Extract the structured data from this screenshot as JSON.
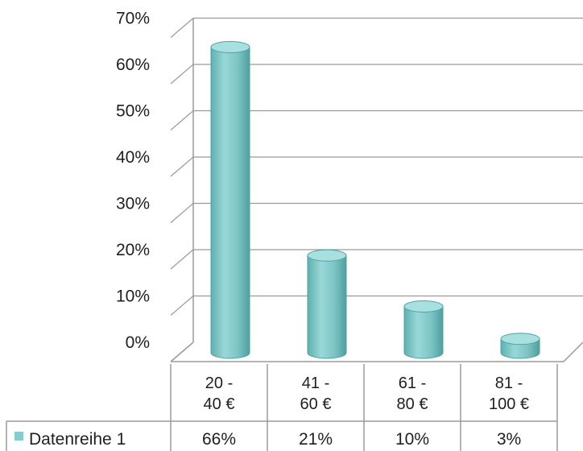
{
  "chart_data": {
    "type": "bar",
    "style": "3d-cylinder",
    "categories": [
      [
        "20 -",
        "40 €"
      ],
      [
        "41 -",
        "60 €"
      ],
      [
        "61 -",
        "80 €"
      ],
      [
        "81 -",
        "100 €"
      ]
    ],
    "series": [
      {
        "name": "Datenreihe 1",
        "values": [
          66,
          21,
          10,
          3
        ],
        "labels": [
          "66%",
          "21%",
          "10%",
          "3%"
        ]
      }
    ],
    "y_ticks": [
      "0%",
      "10%",
      "20%",
      "30%",
      "40%",
      "50%",
      "60%",
      "70%"
    ],
    "ylim": [
      0,
      70
    ],
    "grid": true,
    "legend": "data-table-left",
    "colors": {
      "bar": "#7fc8c8",
      "bar_dark": "#4fa3a3",
      "bar_top": "#a8e0e0",
      "grid": "#9a9a9a",
      "table": "#9a9a9a",
      "legend_key": "#86cccc"
    }
  }
}
